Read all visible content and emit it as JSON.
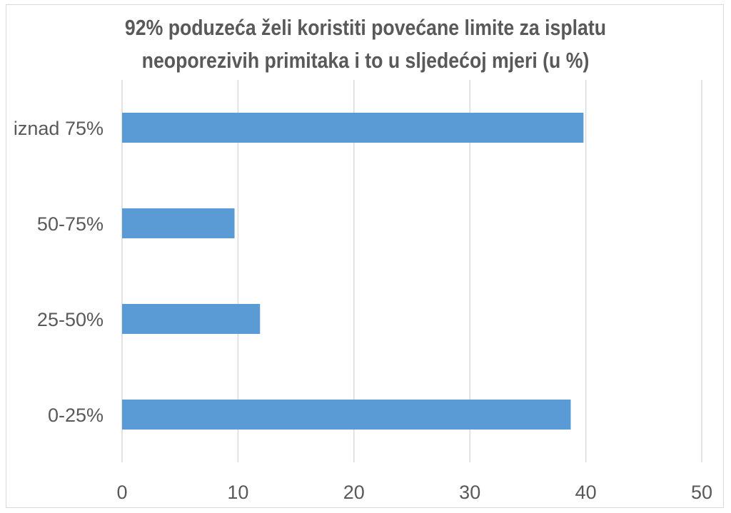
{
  "chart_data": {
    "type": "bar",
    "orientation": "horizontal",
    "title": "92% poduzeća želi koristiti povećane limite za isplatu neoporezivih primitaka i to u sljedećoj mjeri (u %)",
    "title_lines": [
      "92% poduzeća želi koristiti povećane limite za isplatu",
      "neoporezivih primitaka i to u sljedećoj mjeri (u %)"
    ],
    "categories": [
      "iznad 75%",
      "50-75%",
      "25-50%",
      "0-25%"
    ],
    "values": [
      39.8,
      9.7,
      11.9,
      38.7
    ],
    "xlim": [
      0,
      50
    ],
    "xticks": [
      0,
      10,
      20,
      30,
      40,
      50
    ],
    "grid": true,
    "legend": "none",
    "bar_color": "#5b9bd5",
    "gridline_color": "#d9d9d9",
    "text_color": "#595959"
  }
}
